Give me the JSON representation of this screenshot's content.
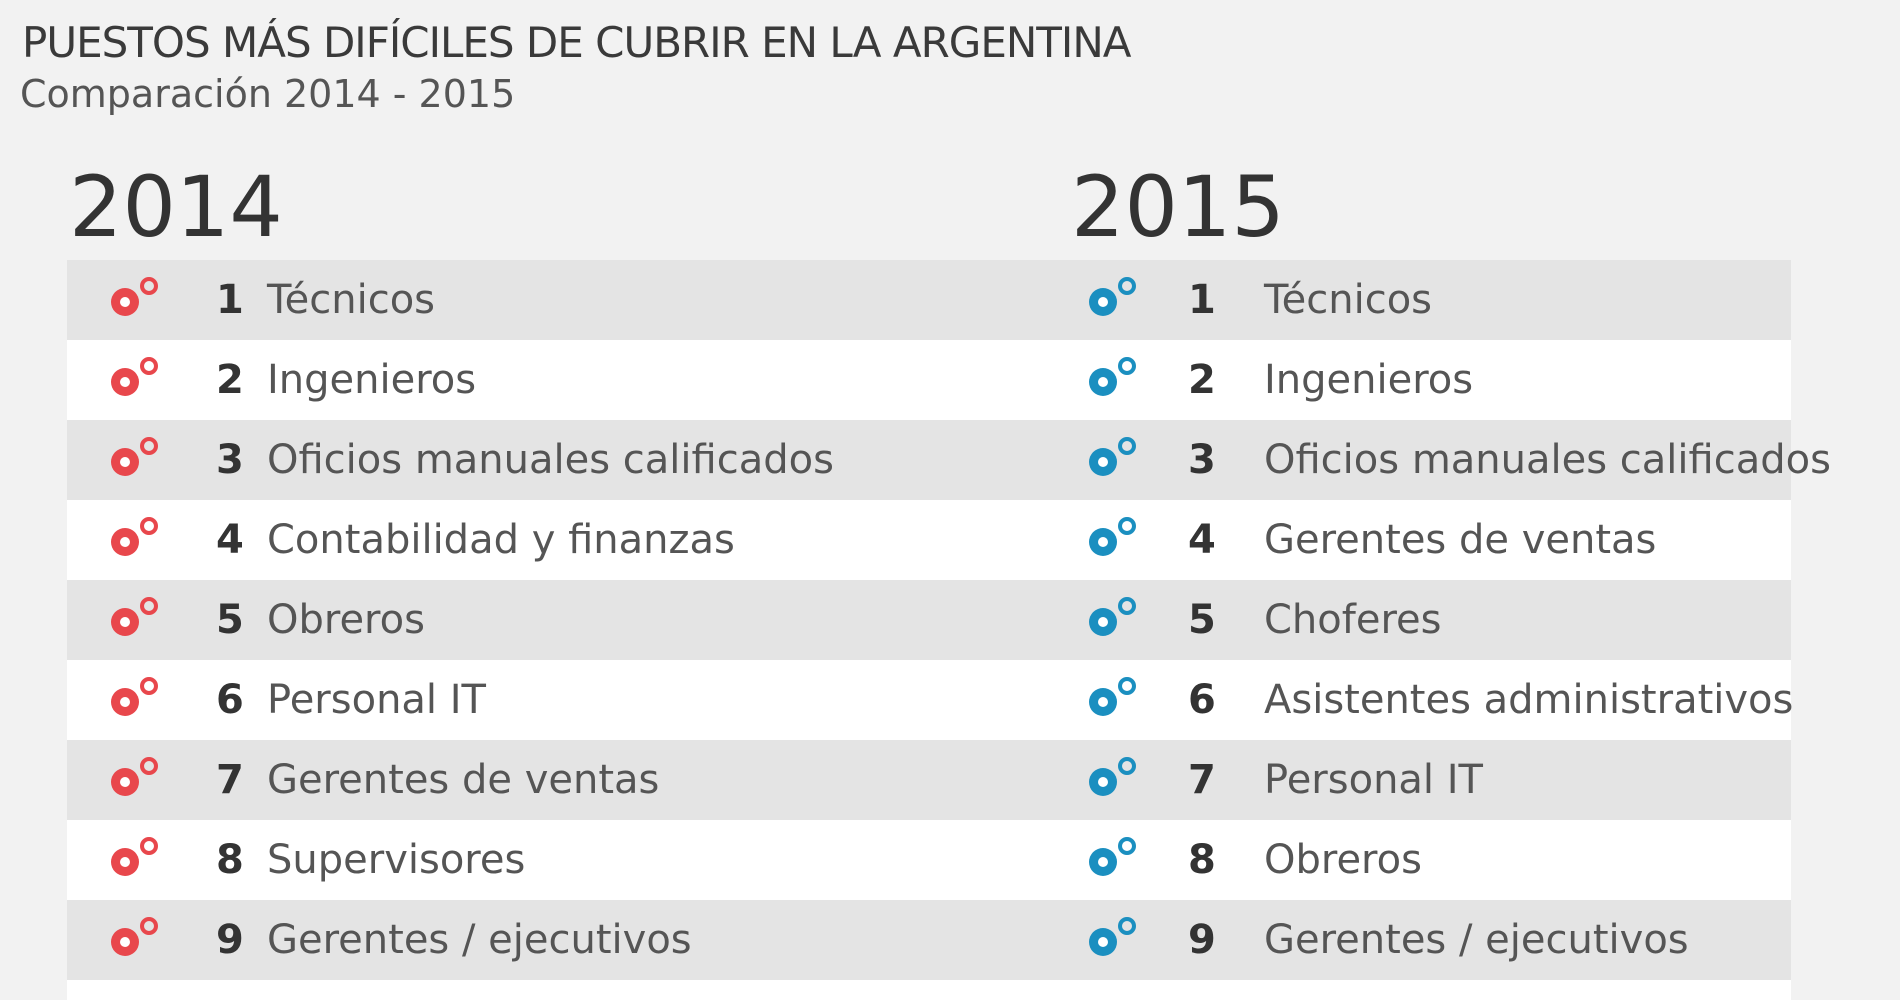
{
  "header": {
    "title": "PUESTOS MÁS DIFÍCILES DE CUBRIR EN LA ARGENTINA",
    "subtitle": "Comparación 2014 - 2015"
  },
  "columns": [
    {
      "year": "2014",
      "icon_color": "#e8474c",
      "rows": [
        {
          "rank": "1",
          "label": "Técnicos"
        },
        {
          "rank": "2",
          "label": "Ingenieros"
        },
        {
          "rank": "3",
          "label": "Oficios manuales calificados"
        },
        {
          "rank": "4",
          "label": "Contabilidad y finanzas"
        },
        {
          "rank": "5",
          "label": "Obreros"
        },
        {
          "rank": "6",
          "label": "Personal IT"
        },
        {
          "rank": "7",
          "label": "Gerentes de ventas"
        },
        {
          "rank": "8",
          "label": "Supervisores"
        },
        {
          "rank": "9",
          "label": "Gerentes / ejecutivos"
        }
      ]
    },
    {
      "year": "2015",
      "icon_color": "#1b8fc0",
      "rows": [
        {
          "rank": "1",
          "label": "Técnicos"
        },
        {
          "rank": "2",
          "label": "Ingenieros"
        },
        {
          "rank": "3",
          "label": "Oficios manuales calificados"
        },
        {
          "rank": "4",
          "label": "Gerentes de ventas"
        },
        {
          "rank": "5",
          "label": "Choferes"
        },
        {
          "rank": "6",
          "label": "Asistentes administrativos"
        },
        {
          "rank": "7",
          "label": "Personal IT"
        },
        {
          "rank": "8",
          "label": "Obreros"
        },
        {
          "rank": "9",
          "label": "Gerentes / ejecutivos"
        }
      ]
    }
  ]
}
